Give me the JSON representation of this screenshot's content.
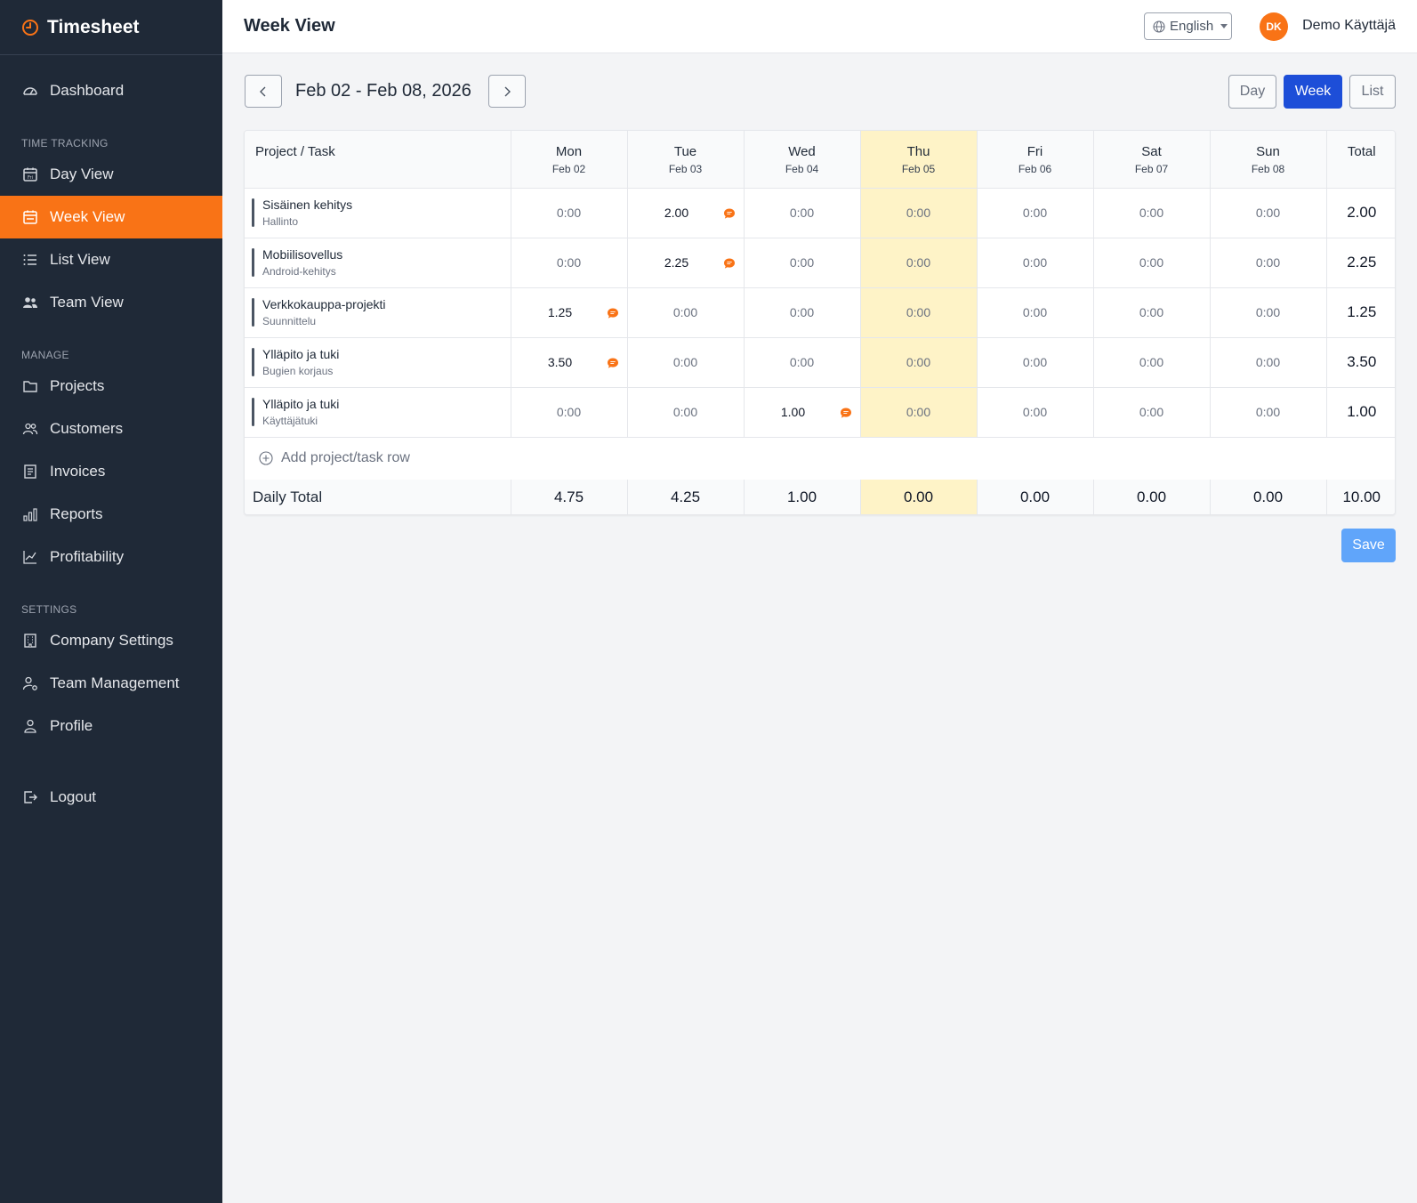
{
  "app": {
    "name": "Timesheet",
    "brand_color": "#f97316"
  },
  "sidebar": {
    "top_items": [
      {
        "label": "Dashboard",
        "icon": "dashboard-icon"
      }
    ],
    "sections": [
      {
        "title": "TIME TRACKING",
        "items": [
          {
            "label": "Day View",
            "icon": "calendar-day-icon"
          },
          {
            "label": "Week View",
            "icon": "calendar-week-icon",
            "active": true
          },
          {
            "label": "List View",
            "icon": "list-icon"
          },
          {
            "label": "Team View",
            "icon": "team-icon"
          }
        ]
      },
      {
        "title": "MANAGE",
        "items": [
          {
            "label": "Projects",
            "icon": "folder-icon"
          },
          {
            "label": "Customers",
            "icon": "customers-icon"
          },
          {
            "label": "Invoices",
            "icon": "invoice-icon"
          },
          {
            "label": "Reports",
            "icon": "bar-chart-icon"
          },
          {
            "label": "Profitability",
            "icon": "line-chart-icon"
          }
        ]
      },
      {
        "title": "SETTINGS",
        "items": [
          {
            "label": "Company Settings",
            "icon": "building-icon"
          },
          {
            "label": "Team Management",
            "icon": "user-gear-icon"
          },
          {
            "label": "Profile",
            "icon": "user-icon"
          }
        ]
      }
    ],
    "logout_label": "Logout"
  },
  "header": {
    "title": "Week View",
    "language": "English",
    "user_initials": "DK",
    "user_name": "Demo Käyttäjä"
  },
  "toolbar": {
    "date_range": "Feb 02 - Feb 08, 2026",
    "views": [
      "Day",
      "Week",
      "List"
    ],
    "active_view": "Week"
  },
  "table": {
    "project_header": "Project / Task",
    "total_header": "Total",
    "days": [
      {
        "name": "Mon",
        "date": "Feb 02",
        "today": false
      },
      {
        "name": "Tue",
        "date": "Feb 03",
        "today": false
      },
      {
        "name": "Wed",
        "date": "Feb 04",
        "today": false
      },
      {
        "name": "Thu",
        "date": "Feb 05",
        "today": true
      },
      {
        "name": "Fri",
        "date": "Feb 06",
        "today": false
      },
      {
        "name": "Sat",
        "date": "Feb 07",
        "today": false
      },
      {
        "name": "Sun",
        "date": "Feb 08",
        "today": false
      }
    ],
    "rows": [
      {
        "project": "Sisäinen kehitys",
        "task": "Hallinto",
        "cells": [
          "0:00",
          "2.00",
          "0:00",
          "0:00",
          "0:00",
          "0:00",
          "0:00"
        ],
        "comments": [
          false,
          true,
          false,
          false,
          false,
          false,
          false
        ],
        "total": "2.00"
      },
      {
        "project": "Mobiilisovellus",
        "task": "Android-kehitys",
        "cells": [
          "0:00",
          "2.25",
          "0:00",
          "0:00",
          "0:00",
          "0:00",
          "0:00"
        ],
        "comments": [
          false,
          true,
          false,
          false,
          false,
          false,
          false
        ],
        "total": "2.25"
      },
      {
        "project": "Verkkokauppa-projekti",
        "task": "Suunnittelu",
        "cells": [
          "1.25",
          "0:00",
          "0:00",
          "0:00",
          "0:00",
          "0:00",
          "0:00"
        ],
        "comments": [
          true,
          false,
          false,
          false,
          false,
          false,
          false
        ],
        "total": "1.25"
      },
      {
        "project": "Ylläpito ja tuki",
        "task": "Bugien korjaus",
        "cells": [
          "3.50",
          "0:00",
          "0:00",
          "0:00",
          "0:00",
          "0:00",
          "0:00"
        ],
        "comments": [
          true,
          false,
          false,
          false,
          false,
          false,
          false
        ],
        "total": "3.50"
      },
      {
        "project": "Ylläpito ja tuki",
        "task": "Käyttäjätuki",
        "cells": [
          "0:00",
          "0:00",
          "1.00",
          "0:00",
          "0:00",
          "0:00",
          "0:00"
        ],
        "comments": [
          false,
          false,
          true,
          false,
          false,
          false,
          false
        ],
        "total": "1.00"
      }
    ],
    "add_row_label": "Add project/task row",
    "daily_total_label": "Daily Total",
    "daily_totals": [
      "4.75",
      "4.25",
      "1.00",
      "0.00",
      "0.00",
      "0.00",
      "0.00"
    ],
    "grand_total": "10.00"
  },
  "actions": {
    "save_label": "Save"
  },
  "colors": {
    "sidebar_bg": "#1f2937",
    "active_nav": "#f97316",
    "primary": "#1d4ed8",
    "today_highlight": "#fef3c7",
    "comment_icon": "#f97316",
    "save_button": "#60a5fa"
  }
}
